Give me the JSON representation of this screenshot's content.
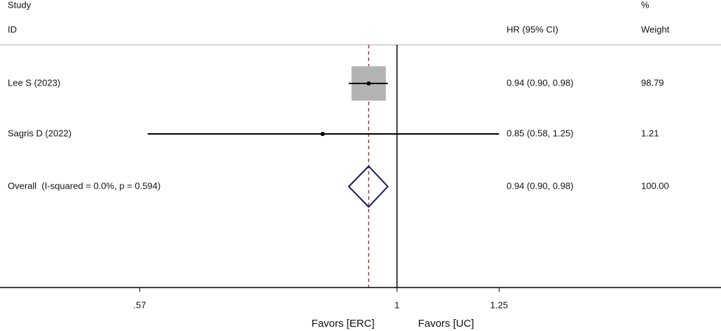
{
  "chart_data": {
    "type": "forest",
    "headers": {
      "study": "Study",
      "id": "ID",
      "effect": "HR (95% CI)",
      "pct": "%",
      "weight": "Weight"
    },
    "studies": [
      {
        "label": "Lee S (2023)",
        "hr": 0.94,
        "lower": 0.9,
        "upper": 0.98,
        "ci_label": "0.94 (0.90, 0.98)",
        "weight": 98.79,
        "weight_label": "98.79"
      },
      {
        "label": "Sagris D (2022)",
        "hr": 0.85,
        "lower": 0.58,
        "upper": 1.25,
        "ci_label": "0.85 (0.58, 1.25)",
        "weight": 1.21,
        "weight_label": "1.21"
      }
    ],
    "overall": {
      "label": "Overall  (I-squared = 0.0%, p = 0.594)",
      "hr": 0.94,
      "lower": 0.9,
      "upper": 0.98,
      "ci_label": "0.94 (0.90, 0.98)",
      "weight": 100,
      "weight_label": "100.00"
    },
    "xlim": [
      0.42,
      2.03
    ],
    "xticks": [
      {
        "value": 0.57,
        "label": ".57"
      },
      1,
      1.25
    ],
    "log_scale": true,
    "favors": [
      "Favors [ERC]",
      "Favors [UC]"
    ],
    "box_color": "#b3b3b3",
    "diamond_color": "#1a1a5e",
    "overall_line_color": "#8b2323"
  }
}
